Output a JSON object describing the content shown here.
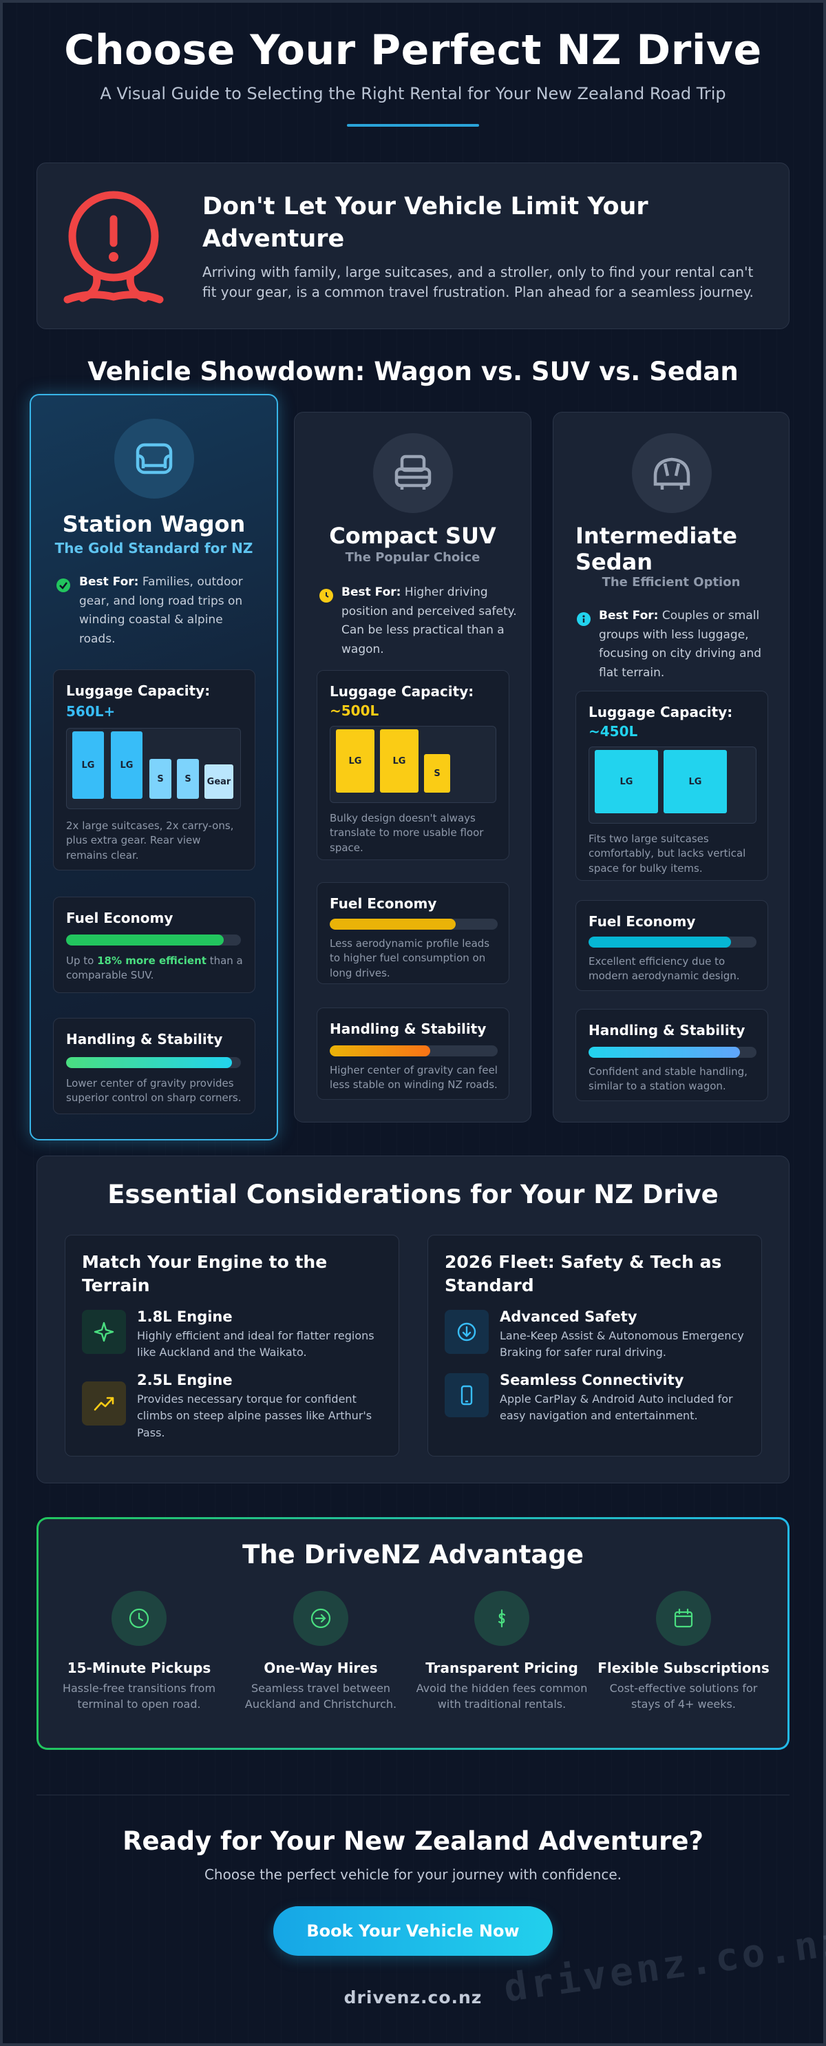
{
  "header": {
    "title": "Choose Your Perfect NZ Drive",
    "subtitle": "A Visual Guide to Selecting the Right Rental for Your New Zealand Road Trip"
  },
  "alert": {
    "icon": "alert-pin-icon",
    "title": "Don't Let Your Vehicle Limit Your Adventure",
    "text": "Arriving with family, large suitcases, and a stroller, only to find your rental can't fit your gear, is a common travel frustration. Plan ahead for a seamless journey."
  },
  "showdown": {
    "title": "Vehicle Showdown: Wagon vs. SUV vs. Sedan",
    "vehicles": [
      {
        "name": "Station Wagon",
        "tagline": "The Gold Standard for NZ",
        "icon": "wagon-icon",
        "best_label": "Best For:",
        "best_text": "Families, outdoor gear, and long road trips on winding coastal & alpine roads.",
        "luggage_title": "Luggage Capacity:",
        "luggage_value": "560L+",
        "bags": [
          "LG",
          "LG",
          "S",
          "S",
          "Gear"
        ],
        "luggage_note": "2x large suitcases, 2x carry-ons, plus extra gear. Rear view remains clear.",
        "fuel_title": "Fuel Economy",
        "fuel_level": 0.9,
        "fuel_note_pre": "Up to",
        "fuel_note_hl": "18% more efficient",
        "fuel_note_post": "than a comparable SUV.",
        "handling_title": "Handling & Stability",
        "handling_level": 0.95,
        "handling_note": "Lower center of gravity provides superior control on sharp corners.",
        "accent": "#38bdf8"
      },
      {
        "name": "Compact SUV",
        "tagline": "The Popular Choice",
        "icon": "suv-icon",
        "best_label": "Best For:",
        "best_text": "Higher driving position and perceived safety. Can be less practical than a wagon.",
        "luggage_title": "Luggage Capacity:",
        "luggage_value": "~500L",
        "bags": [
          "LG",
          "LG",
          "S"
        ],
        "luggage_note": "Bulky design doesn't always translate to more usable floor space.",
        "fuel_title": "Fuel Economy",
        "fuel_level": 0.75,
        "fuel_note": "Less aerodynamic profile leads to higher fuel consumption on long drives.",
        "handling_title": "Handling & Stability",
        "handling_level": 0.6,
        "handling_note": "Higher center of gravity can feel less stable on winding NZ roads.",
        "accent": "#facc15"
      },
      {
        "name": "Intermediate Sedan",
        "tagline": "The Efficient Option",
        "icon": "sedan-icon",
        "best_label": "Best For:",
        "best_text": "Couples or small groups with less luggage, focusing on city driving and flat terrain.",
        "luggage_title": "Luggage Capacity:",
        "luggage_value": "~450L",
        "bags": [
          "LG",
          "LG"
        ],
        "luggage_note": "Fits two large suitcases comfortably, but lacks vertical space for bulky items.",
        "fuel_title": "Fuel Economy",
        "fuel_level": 0.85,
        "fuel_note": "Excellent efficiency due to modern aerodynamic design.",
        "handling_title": "Handling & Stability",
        "handling_level": 0.9,
        "handling_note": "Confident and stable handling, similar to a station wagon.",
        "accent": "#22d3ee"
      }
    ]
  },
  "essentials": {
    "title": "Essential Considerations for Your NZ Drive",
    "cards": [
      {
        "title": "Match Your Engine to the Terrain",
        "features": [
          {
            "name": "1.8L Engine",
            "desc": "Highly efficient and ideal for flatter regions like Auckland and the Waikato.",
            "icon": "leaf-spark-icon"
          },
          {
            "name": "2.5L Engine",
            "desc": "Provides necessary torque for confident climbs on steep alpine passes like Arthur's Pass.",
            "icon": "trend-up-icon"
          }
        ]
      },
      {
        "title": "2026 Fleet: Safety & Tech as Standard",
        "features": [
          {
            "name": "Advanced Safety",
            "desc": "Lane-Keep Assist & Autonomous Emergency Braking for safer rural driving.",
            "icon": "shield-arrow-icon"
          },
          {
            "name": "Seamless Connectivity",
            "desc": "Apple CarPlay & Android Auto included for easy navigation and entertainment.",
            "icon": "phone-icon"
          }
        ]
      }
    ]
  },
  "advantage": {
    "title": "The DriveNZ Advantage",
    "items": [
      {
        "name": "15-Minute Pickups",
        "desc": "Hassle-free transitions from terminal to open road.",
        "icon": "clock-icon"
      },
      {
        "name": "One-Way Hires",
        "desc": "Seamless travel between Auckland and Christchurch.",
        "icon": "arrow-circle-icon"
      },
      {
        "name": "Transparent Pricing",
        "desc": "Avoid the hidden fees common with traditional rentals.",
        "icon": "dollar-icon"
      },
      {
        "name": "Flexible Subscriptions",
        "desc": "Cost-effective solutions for stays of 4+ weeks.",
        "icon": "calendar-icon"
      }
    ]
  },
  "cta": {
    "title": "Ready for Your New Zealand Adventure?",
    "text": "Choose the perfect vehicle for your journey with confidence.",
    "button": "Book Your Vehicle Now",
    "domain": "drivenz.co.nz",
    "watermark": "drivenz.co.nz"
  },
  "colors": {
    "background": "#0d1526",
    "panel": "#1a2334",
    "wagon_accent": "#38bdf8",
    "suv_accent": "#facc15",
    "sedan_accent": "#22d3ee",
    "success": "#22c55e",
    "alert": "#ef4444"
  }
}
